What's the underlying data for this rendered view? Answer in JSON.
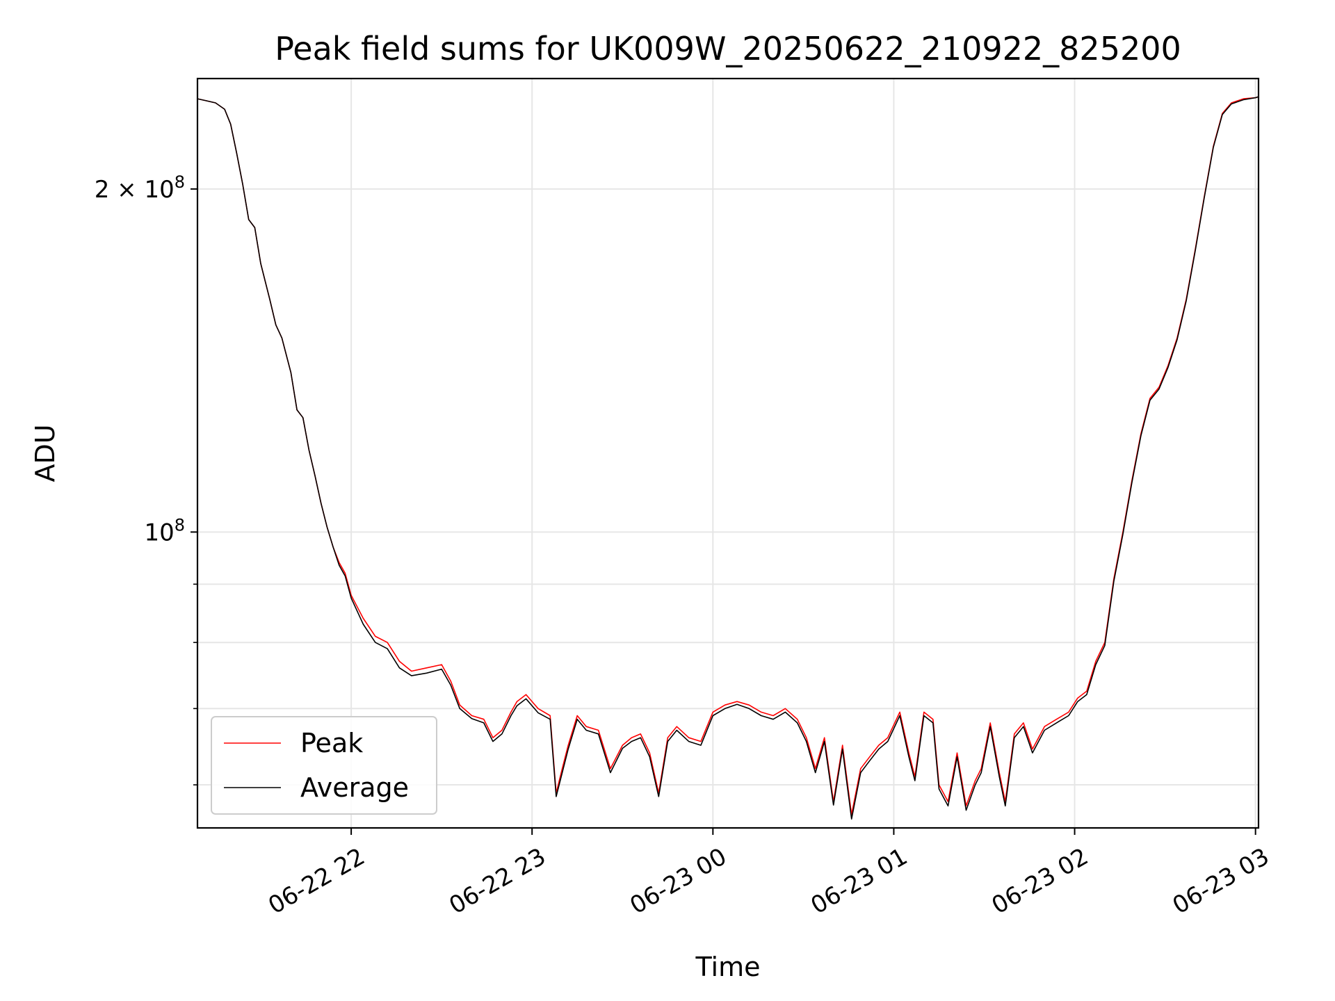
{
  "chart_data": {
    "type": "line",
    "title": "Peak field sums for UK009W_20250622_210922_825200",
    "xlabel": "Time",
    "ylabel": "ADU",
    "yscale": "log",
    "grid": true,
    "legend_position": "lower left",
    "xlim": [
      "2025-06-22 21:09",
      "2025-06-23 03:01"
    ],
    "ylim": [
      55000000,
      250000000
    ],
    "x_ticks": [
      {
        "time": "2025-06-22 22:00",
        "label": "06-22 22"
      },
      {
        "time": "2025-06-22 23:00",
        "label": "06-22 23"
      },
      {
        "time": "2025-06-23 00:00",
        "label": "06-23 00"
      },
      {
        "time": "2025-06-23 01:00",
        "label": "06-23 01"
      },
      {
        "time": "2025-06-23 02:00",
        "label": "06-23 02"
      },
      {
        "time": "2025-06-23 03:00",
        "label": "06-23 03"
      }
    ],
    "y_major_ticks": [
      {
        "value": 100000000,
        "label_base": "10",
        "label_exp": "8"
      },
      {
        "value": 200000000,
        "label_base": "2 × 10",
        "label_exp": "8"
      }
    ],
    "y_minor_ticks": [
      60000000,
      70000000,
      80000000,
      90000000
    ],
    "series": [
      {
        "name": "Peak",
        "color": "#ff0000",
        "x": [
          "2025-06-22 21:09",
          "2025-06-22 21:12",
          "2025-06-22 21:15",
          "2025-06-22 21:18",
          "2025-06-22 21:20",
          "2025-06-22 21:22",
          "2025-06-22 21:24",
          "2025-06-22 21:26",
          "2025-06-22 21:28",
          "2025-06-22 21:30",
          "2025-06-22 21:33",
          "2025-06-22 21:35",
          "2025-06-22 21:37",
          "2025-06-22 21:40",
          "2025-06-22 21:42",
          "2025-06-22 21:44",
          "2025-06-22 21:46",
          "2025-06-22 21:48",
          "2025-06-22 21:50",
          "2025-06-22 21:52",
          "2025-06-22 21:54",
          "2025-06-22 21:56",
          "2025-06-22 21:58",
          "2025-06-22 22:00",
          "2025-06-22 22:04",
          "2025-06-22 22:08",
          "2025-06-22 22:12",
          "2025-06-22 22:16",
          "2025-06-22 22:20",
          "2025-06-22 22:25",
          "2025-06-22 22:30",
          "2025-06-22 22:33",
          "2025-06-22 22:36",
          "2025-06-22 22:40",
          "2025-06-22 22:44",
          "2025-06-22 22:47",
          "2025-06-22 22:50",
          "2025-06-22 22:53",
          "2025-06-22 22:55",
          "2025-06-22 22:58",
          "2025-06-22 23:02",
          "2025-06-22 23:06",
          "2025-06-22 23:08",
          "2025-06-22 23:10",
          "2025-06-22 23:12",
          "2025-06-22 23:15",
          "2025-06-22 23:18",
          "2025-06-22 23:22",
          "2025-06-22 23:26",
          "2025-06-22 23:30",
          "2025-06-22 23:33",
          "2025-06-22 23:36",
          "2025-06-22 23:39",
          "2025-06-22 23:42",
          "2025-06-22 23:45",
          "2025-06-22 23:48",
          "2025-06-22 23:52",
          "2025-06-22 23:56",
          "2025-06-23 00:00",
          "2025-06-23 00:04",
          "2025-06-23 00:08",
          "2025-06-23 00:12",
          "2025-06-23 00:16",
          "2025-06-23 00:20",
          "2025-06-23 00:24",
          "2025-06-23 00:28",
          "2025-06-23 00:31",
          "2025-06-23 00:34",
          "2025-06-23 00:37",
          "2025-06-23 00:40",
          "2025-06-23 00:43",
          "2025-06-23 00:46",
          "2025-06-23 00:49",
          "2025-06-23 00:52",
          "2025-06-23 00:55",
          "2025-06-23 00:58",
          "2025-06-23 01:02",
          "2025-06-23 01:05",
          "2025-06-23 01:07",
          "2025-06-23 01:10",
          "2025-06-23 01:13",
          "2025-06-23 01:15",
          "2025-06-23 01:18",
          "2025-06-23 01:21",
          "2025-06-23 01:24",
          "2025-06-23 01:27",
          "2025-06-23 01:29",
          "2025-06-23 01:32",
          "2025-06-23 01:35",
          "2025-06-23 01:37",
          "2025-06-23 01:40",
          "2025-06-23 01:43",
          "2025-06-23 01:46",
          "2025-06-23 01:50",
          "2025-06-23 01:54",
          "2025-06-23 01:58",
          "2025-06-23 02:01",
          "2025-06-23 02:04",
          "2025-06-23 02:07",
          "2025-06-23 02:10",
          "2025-06-23 02:13",
          "2025-06-23 02:16",
          "2025-06-23 02:19",
          "2025-06-23 02:22",
          "2025-06-23 02:25",
          "2025-06-23 02:28",
          "2025-06-23 02:31",
          "2025-06-23 02:34",
          "2025-06-23 02:37",
          "2025-06-23 02:40",
          "2025-06-23 02:43",
          "2025-06-23 02:46",
          "2025-06-23 02:49",
          "2025-06-23 02:52",
          "2025-06-23 02:56",
          "2025-06-23 03:00",
          "2025-06-23 03:01"
        ],
        "y": [
          240000000,
          239000000,
          238000000,
          235000000,
          228000000,
          215000000,
          202000000,
          188000000,
          185000000,
          172000000,
          160000000,
          152000000,
          148000000,
          138000000,
          128000000,
          126000000,
          118000000,
          112000000,
          106000000,
          101000000,
          97000000,
          94000000,
          92000000,
          88000000,
          84000000,
          81000000,
          80000000,
          77000000,
          75500000,
          76000000,
          76500000,
          74000000,
          70500000,
          69000000,
          68500000,
          66000000,
          67000000,
          69500000,
          71000000,
          72000000,
          70000000,
          69000000,
          59000000,
          62000000,
          65000000,
          69000000,
          67500000,
          67000000,
          62000000,
          65000000,
          66000000,
          66500000,
          64000000,
          59000000,
          66000000,
          67500000,
          66000000,
          65500000,
          69500000,
          70500000,
          71000000,
          70500000,
          69500000,
          69000000,
          70000000,
          68500000,
          66000000,
          62000000,
          66000000,
          58000000,
          65000000,
          56500000,
          62000000,
          63500000,
          65000000,
          66000000,
          69500000,
          64000000,
          61000000,
          69500000,
          68500000,
          60000000,
          58000000,
          64000000,
          57500000,
          60500000,
          62000000,
          68000000,
          61500000,
          58000000,
          66500000,
          68000000,
          64500000,
          67500000,
          68500000,
          69500000,
          71500000,
          72500000,
          77000000,
          80000000,
          91000000,
          100000000,
          111000000,
          122000000,
          131000000,
          134000000,
          140000000,
          148000000,
          160000000,
          177000000,
          197000000,
          218000000,
          233000000,
          238000000,
          240000000,
          240500000,
          241000000
        ]
      },
      {
        "name": "Average",
        "color": "#000000",
        "x": [
          "2025-06-22 21:09",
          "2025-06-22 21:12",
          "2025-06-22 21:15",
          "2025-06-22 21:18",
          "2025-06-22 21:20",
          "2025-06-22 21:22",
          "2025-06-22 21:24",
          "2025-06-22 21:26",
          "2025-06-22 21:28",
          "2025-06-22 21:30",
          "2025-06-22 21:33",
          "2025-06-22 21:35",
          "2025-06-22 21:37",
          "2025-06-22 21:40",
          "2025-06-22 21:42",
          "2025-06-22 21:44",
          "2025-06-22 21:46",
          "2025-06-22 21:48",
          "2025-06-22 21:50",
          "2025-06-22 21:52",
          "2025-06-22 21:54",
          "2025-06-22 21:56",
          "2025-06-22 21:58",
          "2025-06-22 22:00",
          "2025-06-22 22:04",
          "2025-06-22 22:08",
          "2025-06-22 22:12",
          "2025-06-22 22:16",
          "2025-06-22 22:20",
          "2025-06-22 22:25",
          "2025-06-22 22:30",
          "2025-06-22 22:33",
          "2025-06-22 22:36",
          "2025-06-22 22:40",
          "2025-06-22 22:44",
          "2025-06-22 22:47",
          "2025-06-22 22:50",
          "2025-06-22 22:53",
          "2025-06-22 22:55",
          "2025-06-22 22:58",
          "2025-06-22 23:02",
          "2025-06-22 23:06",
          "2025-06-22 23:08",
          "2025-06-22 23:10",
          "2025-06-22 23:12",
          "2025-06-22 23:15",
          "2025-06-22 23:18",
          "2025-06-22 23:22",
          "2025-06-22 23:26",
          "2025-06-22 23:30",
          "2025-06-22 23:33",
          "2025-06-22 23:36",
          "2025-06-22 23:39",
          "2025-06-22 23:42",
          "2025-06-22 23:45",
          "2025-06-22 23:48",
          "2025-06-22 23:52",
          "2025-06-22 23:56",
          "2025-06-23 00:00",
          "2025-06-23 00:04",
          "2025-06-23 00:08",
          "2025-06-23 00:12",
          "2025-06-23 00:16",
          "2025-06-23 00:20",
          "2025-06-23 00:24",
          "2025-06-23 00:28",
          "2025-06-23 00:31",
          "2025-06-23 00:34",
          "2025-06-23 00:37",
          "2025-06-23 00:40",
          "2025-06-23 00:43",
          "2025-06-23 00:46",
          "2025-06-23 00:49",
          "2025-06-23 00:52",
          "2025-06-23 00:55",
          "2025-06-23 00:58",
          "2025-06-23 01:02",
          "2025-06-23 01:05",
          "2025-06-23 01:07",
          "2025-06-23 01:10",
          "2025-06-23 01:13",
          "2025-06-23 01:15",
          "2025-06-23 01:18",
          "2025-06-23 01:21",
          "2025-06-23 01:24",
          "2025-06-23 01:27",
          "2025-06-23 01:29",
          "2025-06-23 01:32",
          "2025-06-23 01:35",
          "2025-06-23 01:37",
          "2025-06-23 01:40",
          "2025-06-23 01:43",
          "2025-06-23 01:46",
          "2025-06-23 01:50",
          "2025-06-23 01:54",
          "2025-06-23 01:58",
          "2025-06-23 02:01",
          "2025-06-23 02:04",
          "2025-06-23 02:07",
          "2025-06-23 02:10",
          "2025-06-23 02:13",
          "2025-06-23 02:16",
          "2025-06-23 02:19",
          "2025-06-23 02:22",
          "2025-06-23 02:25",
          "2025-06-23 02:28",
          "2025-06-23 02:31",
          "2025-06-23 02:34",
          "2025-06-23 02:37",
          "2025-06-23 02:40",
          "2025-06-23 02:43",
          "2025-06-23 02:46",
          "2025-06-23 02:49",
          "2025-06-23 02:52",
          "2025-06-23 02:56",
          "2025-06-23 03:00",
          "2025-06-23 03:01"
        ],
        "y": [
          240000000,
          239000000,
          238000000,
          235000000,
          228000000,
          215000000,
          202000000,
          188000000,
          185000000,
          172000000,
          160000000,
          152000000,
          148000000,
          138000000,
          128000000,
          126000000,
          118000000,
          112000000,
          106000000,
          101000000,
          97000000,
          93500000,
          91500000,
          87500000,
          83000000,
          80000000,
          79000000,
          76000000,
          74800000,
          75200000,
          75800000,
          73400000,
          70000000,
          68600000,
          68000000,
          65500000,
          66500000,
          69000000,
          70400000,
          71400000,
          69400000,
          68500000,
          58600000,
          61500000,
          64500000,
          68500000,
          67000000,
          66500000,
          61500000,
          64600000,
          65500000,
          66000000,
          63500000,
          58600000,
          65500000,
          67000000,
          65500000,
          65000000,
          69000000,
          70000000,
          70600000,
          70000000,
          69000000,
          68500000,
          69500000,
          68000000,
          65500000,
          61500000,
          65500000,
          57600000,
          64500000,
          56000000,
          61500000,
          63000000,
          64500000,
          65500000,
          69000000,
          63500000,
          60500000,
          69000000,
          68000000,
          59500000,
          57500000,
          63500000,
          57000000,
          60000000,
          61500000,
          67500000,
          61000000,
          57500000,
          66000000,
          67500000,
          64000000,
          67000000,
          68000000,
          69000000,
          71000000,
          72000000,
          76500000,
          79500000,
          90500000,
          99500000,
          110500000,
          121500000,
          130500000,
          133500000,
          139500000,
          147500000,
          159500000,
          176500000,
          196500000,
          217500000,
          232500000,
          237500000,
          239500000,
          240500000,
          241000000
        ]
      }
    ]
  }
}
